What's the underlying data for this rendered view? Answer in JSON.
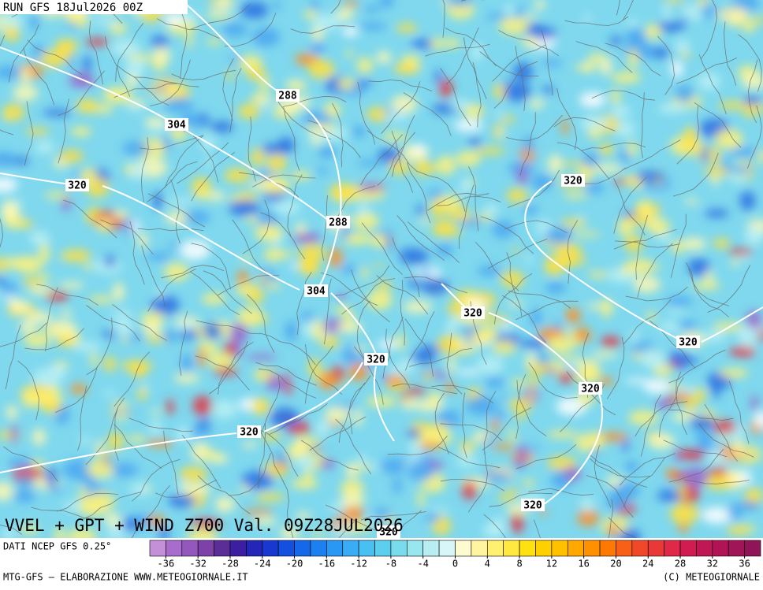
{
  "header": {
    "run": "RUN GFS 18Jul2026 00Z"
  },
  "map": {
    "title": "VVEL + GPT + WIND Z700 Val. 09Z28JUL2026",
    "contour_labels": [
      "288",
      "304",
      "320",
      "320",
      "288",
      "304",
      "320",
      "320",
      "320",
      "320",
      "320",
      "320",
      "320"
    ]
  },
  "legend": {
    "source": "DATI NCEP GFS 0.25°",
    "ticks": [
      -36,
      -32,
      -28,
      -24,
      -20,
      -16,
      -12,
      -8,
      -4,
      0,
      4,
      8,
      12,
      16,
      20,
      24,
      28,
      32,
      36
    ],
    "colors": [
      "#c490d8",
      "#a86ccc",
      "#9457bb",
      "#7d41a8",
      "#5a2e96",
      "#3b1fa0",
      "#2426b8",
      "#1838d0",
      "#1450e0",
      "#1668ea",
      "#1c80f0",
      "#2898f4",
      "#38acf4",
      "#48c0f2",
      "#5ccfee",
      "#78dcec",
      "#98e6ee",
      "#b8eef2",
      "#d8f6f8",
      "#fffbd0",
      "#fff5a0",
      "#fff070",
      "#ffe840",
      "#ffe010",
      "#ffd000",
      "#ffc000",
      "#ffa800",
      "#ff9000",
      "#ff7800",
      "#f86018",
      "#f04828",
      "#e83838",
      "#e02848",
      "#d01c50",
      "#c01854",
      "#b01456",
      "#a01458",
      "#901458"
    ]
  },
  "footer": {
    "left": "MTG-GFS — ELABORAZIONE WWW.METEOGIORNALE.IT",
    "right": "(C) METEOGIORNALE"
  }
}
